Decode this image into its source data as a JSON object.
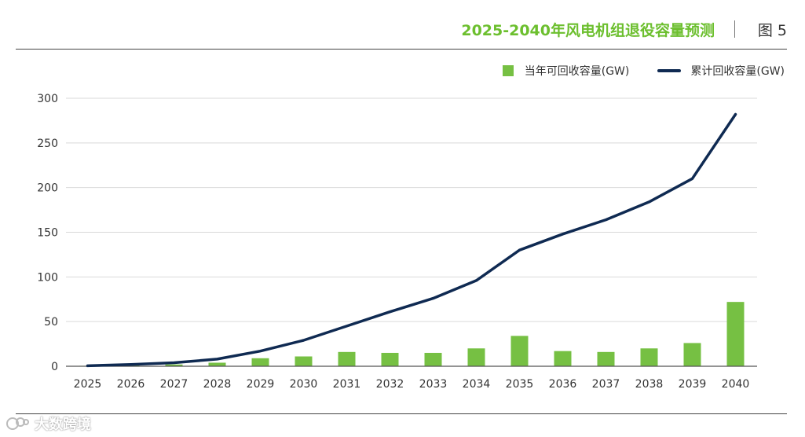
{
  "header": {
    "title": "2025-2040年风电机组退役容量预测",
    "figure_label": "图 5"
  },
  "legend": {
    "bar_label": "当年可回收容量(GW)",
    "line_label": "累计回收容量(GW)"
  },
  "watermark": {
    "text": "大数跨境"
  },
  "colors": {
    "accent": "#6cbf2e",
    "bar": "#76c043",
    "line": "#0f2a52",
    "grid": "#d9d9d9",
    "axis_text": "#333333"
  },
  "chart_data": {
    "type": "bar+line",
    "title": "2025-2040年风电机组退役容量预测",
    "categories": [
      "2025",
      "2026",
      "2027",
      "2028",
      "2029",
      "2030",
      "2031",
      "2032",
      "2033",
      "2034",
      "2035",
      "2036",
      "2037",
      "2038",
      "2039",
      "2040"
    ],
    "series": [
      {
        "name": "当年可回收容量(GW)",
        "type": "bar",
        "values": [
          0.5,
          1,
          2,
          4,
          9,
          11,
          16,
          15,
          15,
          20,
          34,
          17,
          16,
          20,
          26,
          72
        ]
      },
      {
        "name": "累计回收容量(GW)",
        "type": "line",
        "values": [
          0.5,
          2,
          4,
          8,
          17,
          29,
          45,
          61,
          76,
          96,
          130,
          148,
          164,
          184,
          210,
          282
        ]
      }
    ],
    "yticks": [
      0,
      50,
      100,
      150,
      200,
      250,
      300
    ],
    "ylim": [
      0,
      300
    ],
    "xlabel": "",
    "ylabel": "",
    "grid": true,
    "legend_position": "top-right"
  }
}
